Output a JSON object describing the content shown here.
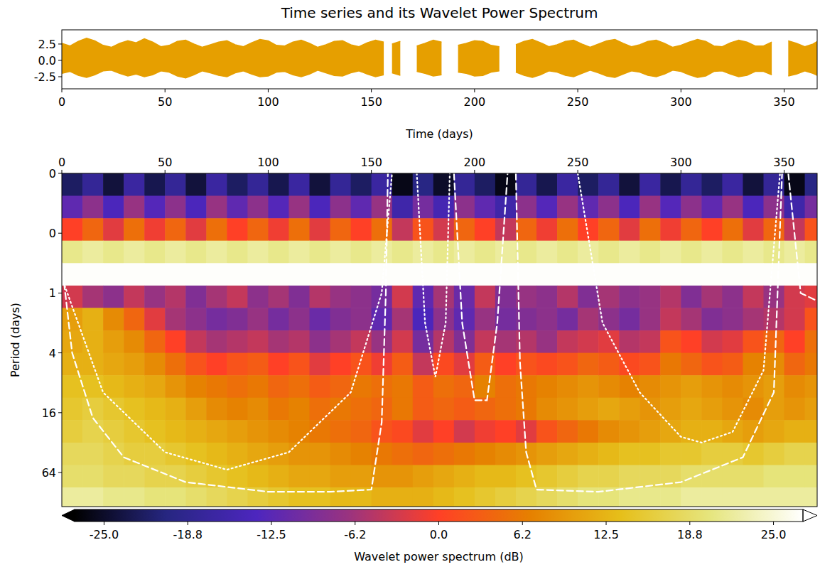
{
  "chart_data": [
    {
      "type": "line",
      "title": "Time series and its Wavelet Power Spectrum",
      "xlabel": "Time (days)",
      "xlim": [
        0,
        366
      ],
      "ylim": [
        -4.35,
        4.67
      ],
      "xticks": [
        0,
        50,
        100,
        150,
        200,
        250,
        300,
        350
      ],
      "yticks": [
        -2.5,
        {
          "value": 0,
          "label": "0.0"
        },
        2.5
      ],
      "series": [
        {
          "color": "#e69f00",
          "x": [
            0,
            4,
            8,
            12,
            16,
            20,
            24,
            28,
            32,
            36,
            40,
            44,
            48,
            52,
            56,
            60,
            64,
            68,
            72,
            76,
            80,
            84,
            88,
            92,
            96,
            100,
            104,
            108,
            112,
            116,
            120,
            124,
            128,
            132,
            136,
            140,
            144,
            148,
            152,
            156,
            158,
            160,
            164,
            168,
            172,
            176,
            180,
            184,
            188,
            192,
            196,
            200,
            204,
            208,
            212,
            216,
            220,
            224,
            228,
            232,
            236,
            240,
            244,
            248,
            252,
            256,
            260,
            264,
            268,
            272,
            276,
            280,
            284,
            288,
            292,
            296,
            300,
            304,
            308,
            312,
            316,
            320,
            324,
            328,
            332,
            336,
            340,
            344,
            348,
            352,
            356,
            360,
            364,
            366
          ],
          "values": [
            2.6,
            2.2,
            2.9,
            3.4,
            3.0,
            2.3,
            2.0,
            2.6,
            3.0,
            2.7,
            3.3,
            2.8,
            2.1,
            2.3,
            2.9,
            3.1,
            2.5,
            2.0,
            2.4,
            2.8,
            3.0,
            2.4,
            2.1,
            2.7,
            3.2,
            3.0,
            2.3,
            2.2,
            2.8,
            3.1,
            2.6,
            2.0,
            2.4,
            2.9,
            3.0,
            2.4,
            2.1,
            2.7,
            3.1,
            2.8,
            null,
            2.5,
            2.9,
            null,
            2.2,
            2.6,
            3.1,
            2.8,
            null,
            2.3,
            2.6,
            3.0,
            2.9,
            2.3,
            2.1,
            null,
            2.4,
            2.9,
            3.2,
            2.7,
            2.1,
            2.4,
            2.9,
            3.1,
            2.5,
            2.0,
            2.5,
            3.0,
            3.2,
            2.6,
            2.1,
            2.4,
            2.9,
            3.1,
            2.6,
            2.0,
            2.3,
            2.8,
            3.2,
            2.9,
            2.2,
            2.1,
            2.7,
            3.1,
            2.8,
            2.2,
            2.2,
            2.8,
            null,
            3.0,
            2.6,
            2.1,
            2.5,
            2.9
          ]
        },
        {
          "color": "#e69f00",
          "x": [
            0,
            4,
            8,
            12,
            16,
            20,
            24,
            28,
            32,
            36,
            40,
            44,
            48,
            52,
            56,
            60,
            64,
            68,
            72,
            76,
            80,
            84,
            88,
            92,
            96,
            100,
            104,
            108,
            112,
            116,
            120,
            124,
            128,
            132,
            136,
            140,
            144,
            148,
            152,
            156,
            158,
            160,
            164,
            168,
            172,
            176,
            180,
            184,
            188,
            192,
            196,
            200,
            204,
            208,
            212,
            216,
            220,
            224,
            228,
            232,
            236,
            240,
            244,
            248,
            252,
            256,
            260,
            264,
            268,
            272,
            276,
            280,
            284,
            288,
            292,
            296,
            300,
            304,
            308,
            312,
            316,
            320,
            324,
            328,
            332,
            336,
            340,
            344,
            348,
            352,
            356,
            360,
            364,
            366
          ],
          "values": [
            -2.0,
            -1.7,
            -2.3,
            -2.6,
            -2.2,
            -1.6,
            -1.5,
            -2.0,
            -2.4,
            -2.1,
            -2.5,
            -2.2,
            -1.6,
            -1.8,
            -2.4,
            -2.7,
            -2.2,
            -1.6,
            -1.9,
            -2.3,
            -2.5,
            -1.9,
            -1.6,
            -2.1,
            -2.5,
            -2.4,
            -1.8,
            -1.7,
            -2.2,
            -2.5,
            -2.1,
            -1.5,
            -1.9,
            -2.3,
            -2.4,
            -1.9,
            -1.6,
            -2.1,
            -2.5,
            -2.2,
            null,
            -1.9,
            -2.3,
            null,
            -1.7,
            -2.0,
            -2.4,
            -2.2,
            null,
            -1.8,
            -2.0,
            -2.4,
            -2.3,
            -1.8,
            -1.6,
            null,
            -1.8,
            -2.3,
            -2.6,
            -2.2,
            -1.6,
            -1.8,
            -2.3,
            -2.5,
            -2.0,
            -1.5,
            -1.9,
            -2.4,
            -2.6,
            -2.1,
            -1.6,
            -1.8,
            -2.3,
            -2.5,
            -2.1,
            -1.5,
            -1.7,
            -2.2,
            -2.6,
            -2.4,
            -1.7,
            -1.6,
            -2.1,
            -2.5,
            -2.3,
            -1.7,
            -1.7,
            -2.2,
            null,
            -2.4,
            -2.1,
            -1.6,
            -2.0,
            -2.3
          ]
        }
      ]
    },
    {
      "type": "heatmap",
      "ylabel": "Period (days)",
      "log": "y",
      "xlim": [
        0,
        366
      ],
      "ylim": [
        0.0625,
        141
      ],
      "xticks": [
        0,
        50,
        100,
        150,
        200,
        250,
        300,
        350
      ],
      "yticks": [
        {
          "value": 0.0625,
          "label": "0"
        },
        {
          "value": 0.25,
          "label": "0"
        },
        1,
        4,
        16,
        64
      ],
      "x_edges": [
        0,
        10,
        20,
        30,
        40,
        50,
        60,
        70,
        80,
        90,
        100,
        110,
        120,
        130,
        140,
        150,
        160,
        170,
        180,
        190,
        200,
        210,
        220,
        230,
        240,
        250,
        260,
        270,
        280,
        290,
        300,
        310,
        320,
        330,
        340,
        350,
        360,
        366
      ],
      "y_edges": [
        0.0625,
        0.105,
        0.177,
        0.297,
        0.5,
        0.841,
        1.41,
        2.38,
        4,
        6.73,
        11.3,
        19,
        32,
        53.8,
        90.5,
        152
      ],
      "cells": [
        [
          -22,
          -18,
          -24,
          -17,
          -23,
          -18,
          -24,
          -17,
          -22,
          -18,
          -23,
          -17,
          -24,
          -18,
          -22,
          -17,
          -26,
          -20,
          -25,
          -18,
          -22,
          -26,
          -18,
          -23,
          -17,
          -22,
          -18,
          -24,
          -17,
          -23,
          -18,
          -22,
          -17,
          -24,
          -18,
          -26,
          -20
        ],
        [
          -12,
          -8,
          -14,
          -7,
          -13,
          -8,
          -14,
          -7,
          -12,
          -8,
          -13,
          -7,
          -14,
          -8,
          -12,
          -7,
          -16,
          -10,
          -15,
          -8,
          -12,
          -16,
          -8,
          -13,
          -7,
          -12,
          -8,
          -14,
          -7,
          -13,
          -8,
          -12,
          -7,
          -14,
          -8,
          -16,
          -10
        ],
        [
          0,
          4,
          -2,
          5,
          -1,
          4,
          -2,
          5,
          0,
          4,
          -1,
          5,
          -2,
          4,
          0,
          5,
          -4,
          2,
          -3,
          4,
          0,
          -4,
          4,
          -1,
          5,
          0,
          4,
          -2,
          5,
          -1,
          4,
          0,
          5,
          -2,
          4,
          -4,
          2
        ],
        [
          21,
          22,
          21,
          22,
          21,
          22,
          21,
          22,
          21,
          22,
          21,
          22,
          21,
          22,
          21,
          22,
          21,
          22,
          21,
          22,
          21,
          22,
          21,
          22,
          21,
          22,
          21,
          22,
          21,
          22,
          21,
          22,
          21,
          22,
          21,
          22,
          21
        ],
        [
          27,
          27,
          27,
          27,
          27,
          27,
          27,
          27,
          27,
          27,
          27,
          27,
          27,
          27,
          27,
          27,
          27,
          27,
          27,
          27,
          27,
          27,
          27,
          27,
          27,
          27,
          27,
          27,
          27,
          27,
          27,
          27,
          27,
          27,
          27,
          27,
          27
        ],
        [
          -3,
          -6,
          -8,
          -4,
          -7,
          -5,
          -9,
          -6,
          -4,
          -8,
          -6,
          -9,
          -5,
          -7,
          -8,
          -10,
          -3,
          -12,
          -6,
          -11,
          -4,
          -9,
          -7,
          -8,
          -5,
          -9,
          -6,
          -8,
          -7,
          -5,
          -9,
          -6,
          -8,
          -4,
          -7,
          -3,
          -2
        ],
        [
          10,
          12,
          8,
          4,
          -2,
          -6,
          -8,
          -10,
          -9,
          -7,
          -10,
          -8,
          -11,
          -9,
          -8,
          -12,
          -6,
          -14,
          -8,
          -12,
          -7,
          -10,
          -9,
          -8,
          -10,
          -6,
          -8,
          -10,
          -7,
          -4,
          -6,
          -9,
          -8,
          -6,
          -5,
          -3,
          2
        ],
        [
          11,
          12,
          10,
          8,
          4,
          0,
          -4,
          -6,
          -5,
          -4,
          -6,
          -5,
          -8,
          -6,
          -4,
          -7,
          -3,
          -10,
          -5,
          -9,
          -4,
          -6,
          -5,
          -7,
          -4,
          -3,
          -2,
          -5,
          -4,
          2,
          0,
          -3,
          -2,
          2,
          4,
          0,
          5
        ],
        [
          12,
          12,
          11,
          10,
          8,
          5,
          2,
          0,
          2,
          3,
          0,
          2,
          -2,
          0,
          2,
          -1,
          3,
          -4,
          1,
          -2,
          3,
          0,
          2,
          1,
          2,
          4,
          3,
          1,
          2,
          6,
          4,
          2,
          3,
          7,
          8,
          4,
          6
        ],
        [
          14,
          14,
          13,
          12,
          11,
          9,
          7,
          6,
          5,
          6,
          4,
          5,
          3,
          4,
          6,
          5,
          6,
          3,
          5,
          4,
          7,
          5,
          6,
          7,
          8,
          9,
          8,
          7,
          8,
          9,
          10,
          9,
          8,
          9,
          10,
          8,
          9
        ],
        [
          15,
          16,
          15,
          14,
          13,
          12,
          10,
          8,
          7,
          8,
          6,
          7,
          5,
          6,
          5,
          4,
          6,
          3,
          4,
          3,
          4,
          5,
          6,
          8,
          9,
          10,
          11,
          10,
          9,
          10,
          11,
          10,
          9,
          8,
          10,
          9,
          10
        ],
        [
          16,
          17,
          16,
          15,
          14,
          13,
          12,
          11,
          10,
          9,
          8,
          7,
          6,
          5,
          4,
          2,
          1,
          -2,
          0,
          -3,
          -1,
          0,
          -2,
          2,
          4,
          6,
          8,
          9,
          10,
          11,
          12,
          12,
          11,
          10,
          11,
          12,
          12
        ],
        [
          18,
          18,
          17,
          16,
          16,
          15,
          14,
          13,
          12,
          11,
          10,
          9,
          9,
          8,
          7,
          6,
          5,
          4,
          5,
          6,
          7,
          8,
          9,
          10,
          11,
          12,
          13,
          14,
          14,
          15,
          15,
          16,
          16,
          15,
          16,
          17,
          17
        ],
        [
          19,
          19,
          18,
          18,
          17,
          17,
          16,
          15,
          14,
          13,
          12,
          11,
          11,
          10,
          10,
          9,
          9,
          10,
          11,
          12,
          13,
          13,
          14,
          15,
          16,
          17,
          17,
          18,
          18,
          18,
          19,
          19,
          19,
          19,
          20,
          20,
          20
        ],
        [
          22,
          22,
          21,
          21,
          20,
          20,
          19,
          18,
          17,
          16,
          15,
          14,
          14,
          13,
          13,
          12,
          12,
          12,
          13,
          14,
          15,
          16,
          17,
          18,
          19,
          20,
          20,
          21,
          21,
          21,
          22,
          22,
          22,
          22,
          22,
          22,
          22
        ]
      ],
      "color_range": [
        -27.2,
        27.2
      ],
      "color_ticks": [
        {
          "value": -25,
          "label": "-25.0"
        },
        {
          "value": -18.75,
          "label": "-18.8"
        },
        -12.5,
        {
          "value": -6.25,
          "label": "-6.2"
        },
        {
          "value": 0,
          "label": "0.0"
        },
        {
          "value": 6.25,
          "label": "6.2"
        },
        12.5,
        {
          "value": 18.75,
          "label": "18.8"
        },
        {
          "value": 25,
          "label": "25.0"
        }
      ],
      "color_label": "Wavelet power spectrum (dB)",
      "series": [
        {
          "color": "#ffffff",
          "line_style": "dashed",
          "x": [
            0,
            5,
            15,
            30,
            60,
            100,
            130,
            150,
            155,
            157,
            158,
            null,
            190,
            194,
            200,
            206,
            211,
            216,
            null,
            220,
            222,
            225,
            230,
            260,
            300,
            330,
            345,
            349,
            null,
            352,
            358,
            366
          ],
          "values": [
            0.5,
            4,
            18,
            45,
            80,
            100,
            100,
            95,
            20,
            1,
            0.0625,
            null,
            0.0625,
            2,
            12,
            12,
            2,
            0.0625,
            null,
            0.0625,
            5,
            40,
            95,
            100,
            80,
            45,
            10,
            0.0625,
            null,
            0.0625,
            1,
            1.2
          ]
        },
        {
          "color": "#ffffff",
          "line_style": "dotted",
          "x": [
            0,
            20,
            50,
            80,
            110,
            140,
            155,
            160,
            null,
            172,
            176,
            181,
            186,
            188,
            null,
            250,
            262,
            280,
            300,
            310,
            325,
            340,
            348
          ],
          "values": [
            0.7,
            10,
            40,
            60,
            40,
            10,
            1,
            0.0625,
            null,
            0.0625,
            2,
            7,
            2,
            0.0625,
            null,
            0.0625,
            2,
            10,
            28,
            32,
            25,
            6,
            0.0625
          ]
        }
      ]
    }
  ]
}
